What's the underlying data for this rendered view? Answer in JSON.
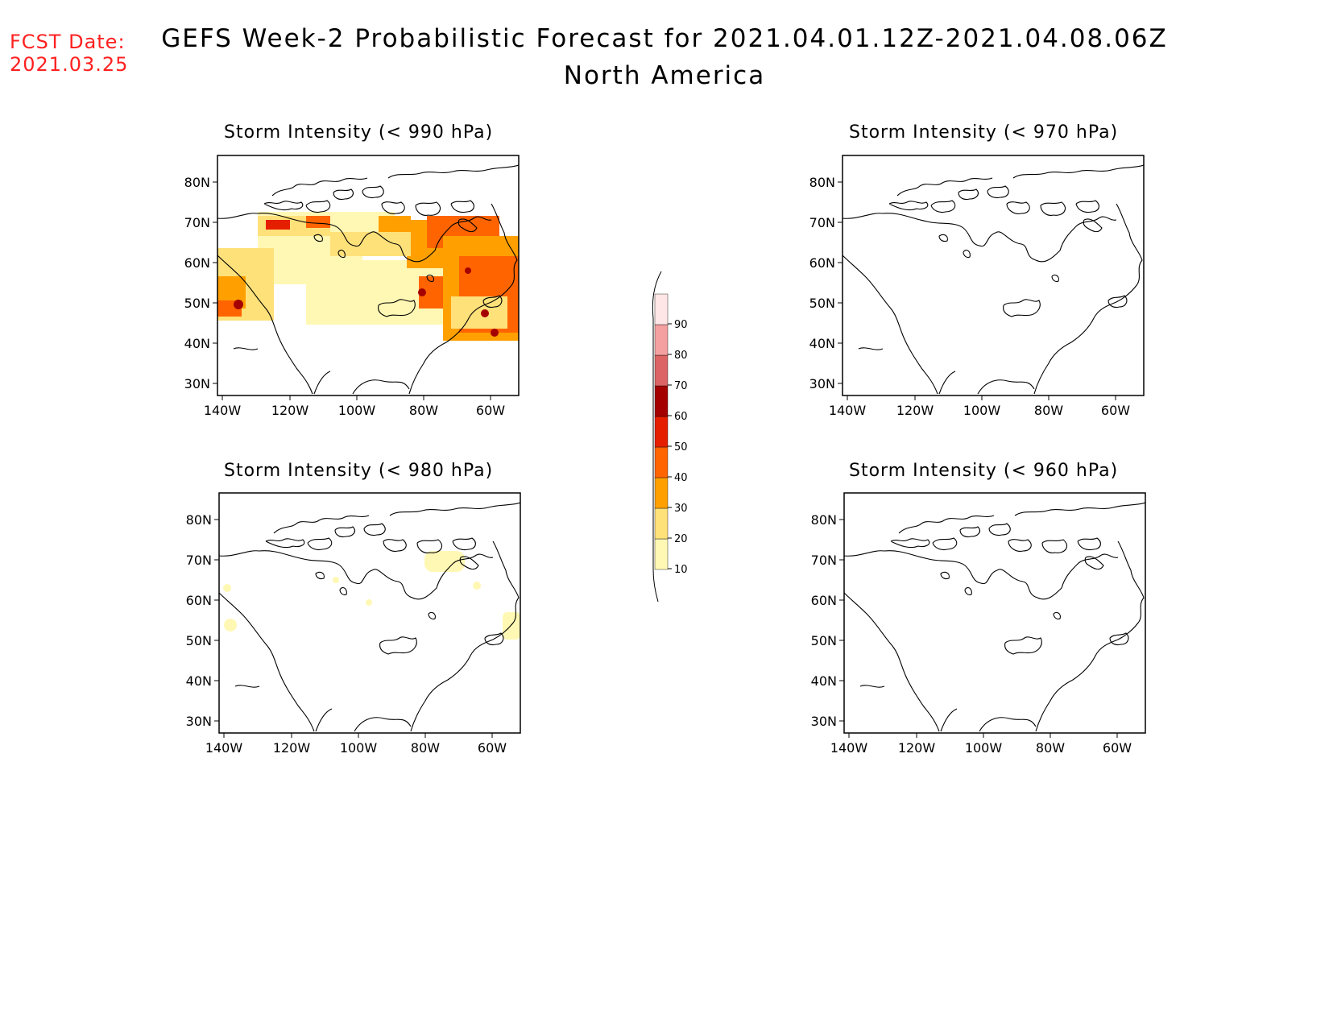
{
  "header": {
    "fcst_label": "FCST Date:",
    "fcst_date": "2021.03.25",
    "title": "GEFS Week-2 Probabilistic Forecast for 2021.04.01.12Z-2021.04.08.06Z",
    "region": "North America"
  },
  "axes": {
    "lat_labels": [
      "80N",
      "70N",
      "60N",
      "50N",
      "40N",
      "30N"
    ],
    "lon_labels": [
      "140W",
      "120W",
      "100W",
      "80W",
      "60W"
    ]
  },
  "panels": [
    {
      "id": "p990",
      "title": "Storm Intensity (< 990 hPa)"
    },
    {
      "id": "p970",
      "title": "Storm Intensity (< 970 hPa)"
    },
    {
      "id": "p980",
      "title": "Storm Intensity (< 980 hPa)"
    },
    {
      "id": "p960",
      "title": "Storm Intensity (< 960 hPa)"
    }
  ],
  "colorbar": {
    "levels": [
      "10",
      "20",
      "30",
      "40",
      "50",
      "60",
      "70",
      "80",
      "90"
    ],
    "colors": [
      "#fff8b4",
      "#ffe17a",
      "#ffa000",
      "#ff6400",
      "#e61e00",
      "#a50000",
      "#dc6464",
      "#f5a0a0",
      "#ffe6e6"
    ]
  }
}
